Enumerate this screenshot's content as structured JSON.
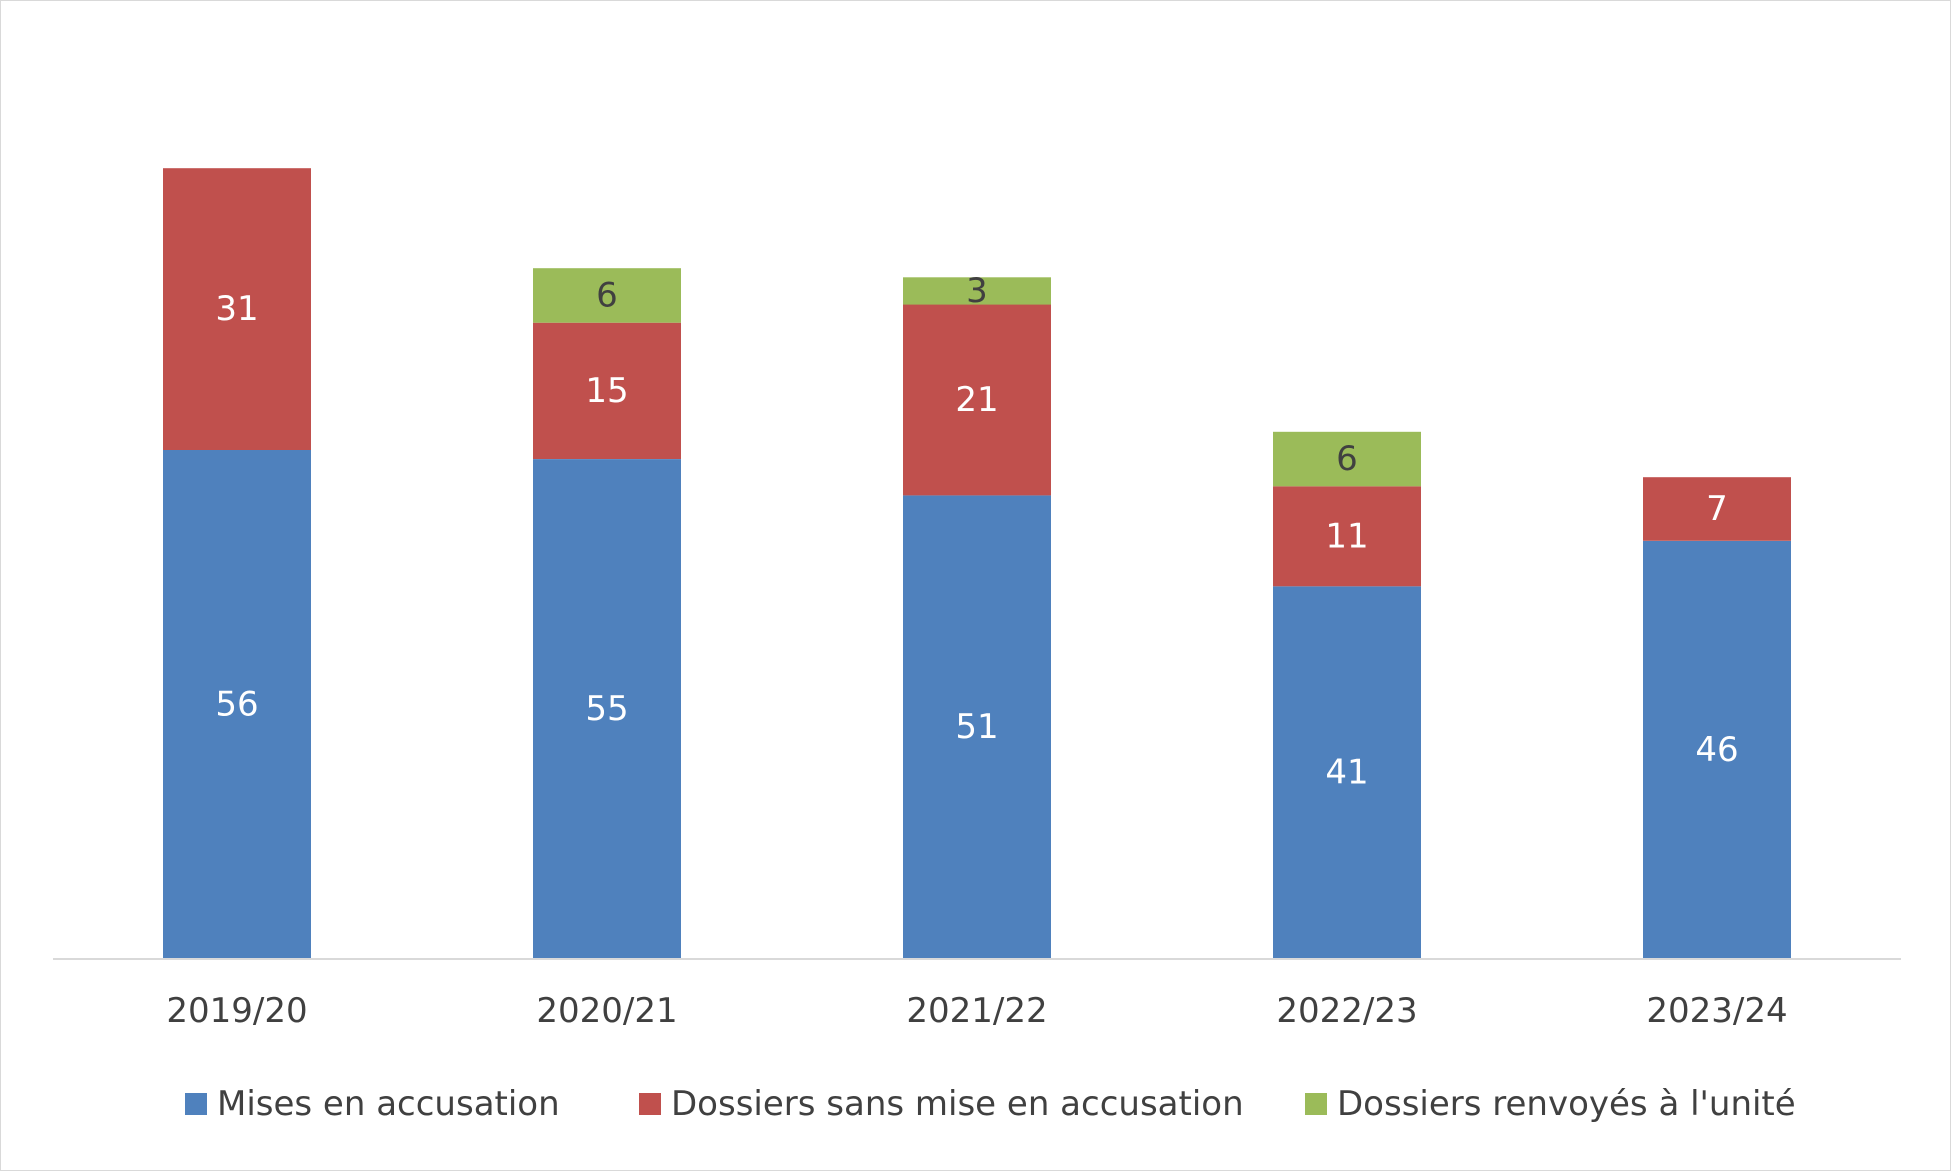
{
  "chart_data": {
    "type": "bar",
    "stacked": true,
    "title": "",
    "xlabel": "",
    "ylabel": "",
    "ylim": [
      0,
      100
    ],
    "grid": false,
    "legend_position": "bottom",
    "categories": [
      "2019/20",
      "2020/21",
      "2021/22",
      "2022/23",
      "2023/24"
    ],
    "series": [
      {
        "name": "Mises en accusation",
        "color": "#4F81BD",
        "label_color": "#ffffff",
        "values": [
          56,
          55,
          51,
          41,
          46
        ]
      },
      {
        "name": "Dossiers sans mise en accusation",
        "color": "#C0504D",
        "label_color": "#ffffff",
        "values": [
          31,
          15,
          21,
          11,
          7
        ]
      },
      {
        "name": "Dossiers renvoyés à l'unité",
        "color": "#9BBB59",
        "label_color": "#404040",
        "values": [
          null,
          6,
          3,
          6,
          null
        ]
      }
    ]
  }
}
